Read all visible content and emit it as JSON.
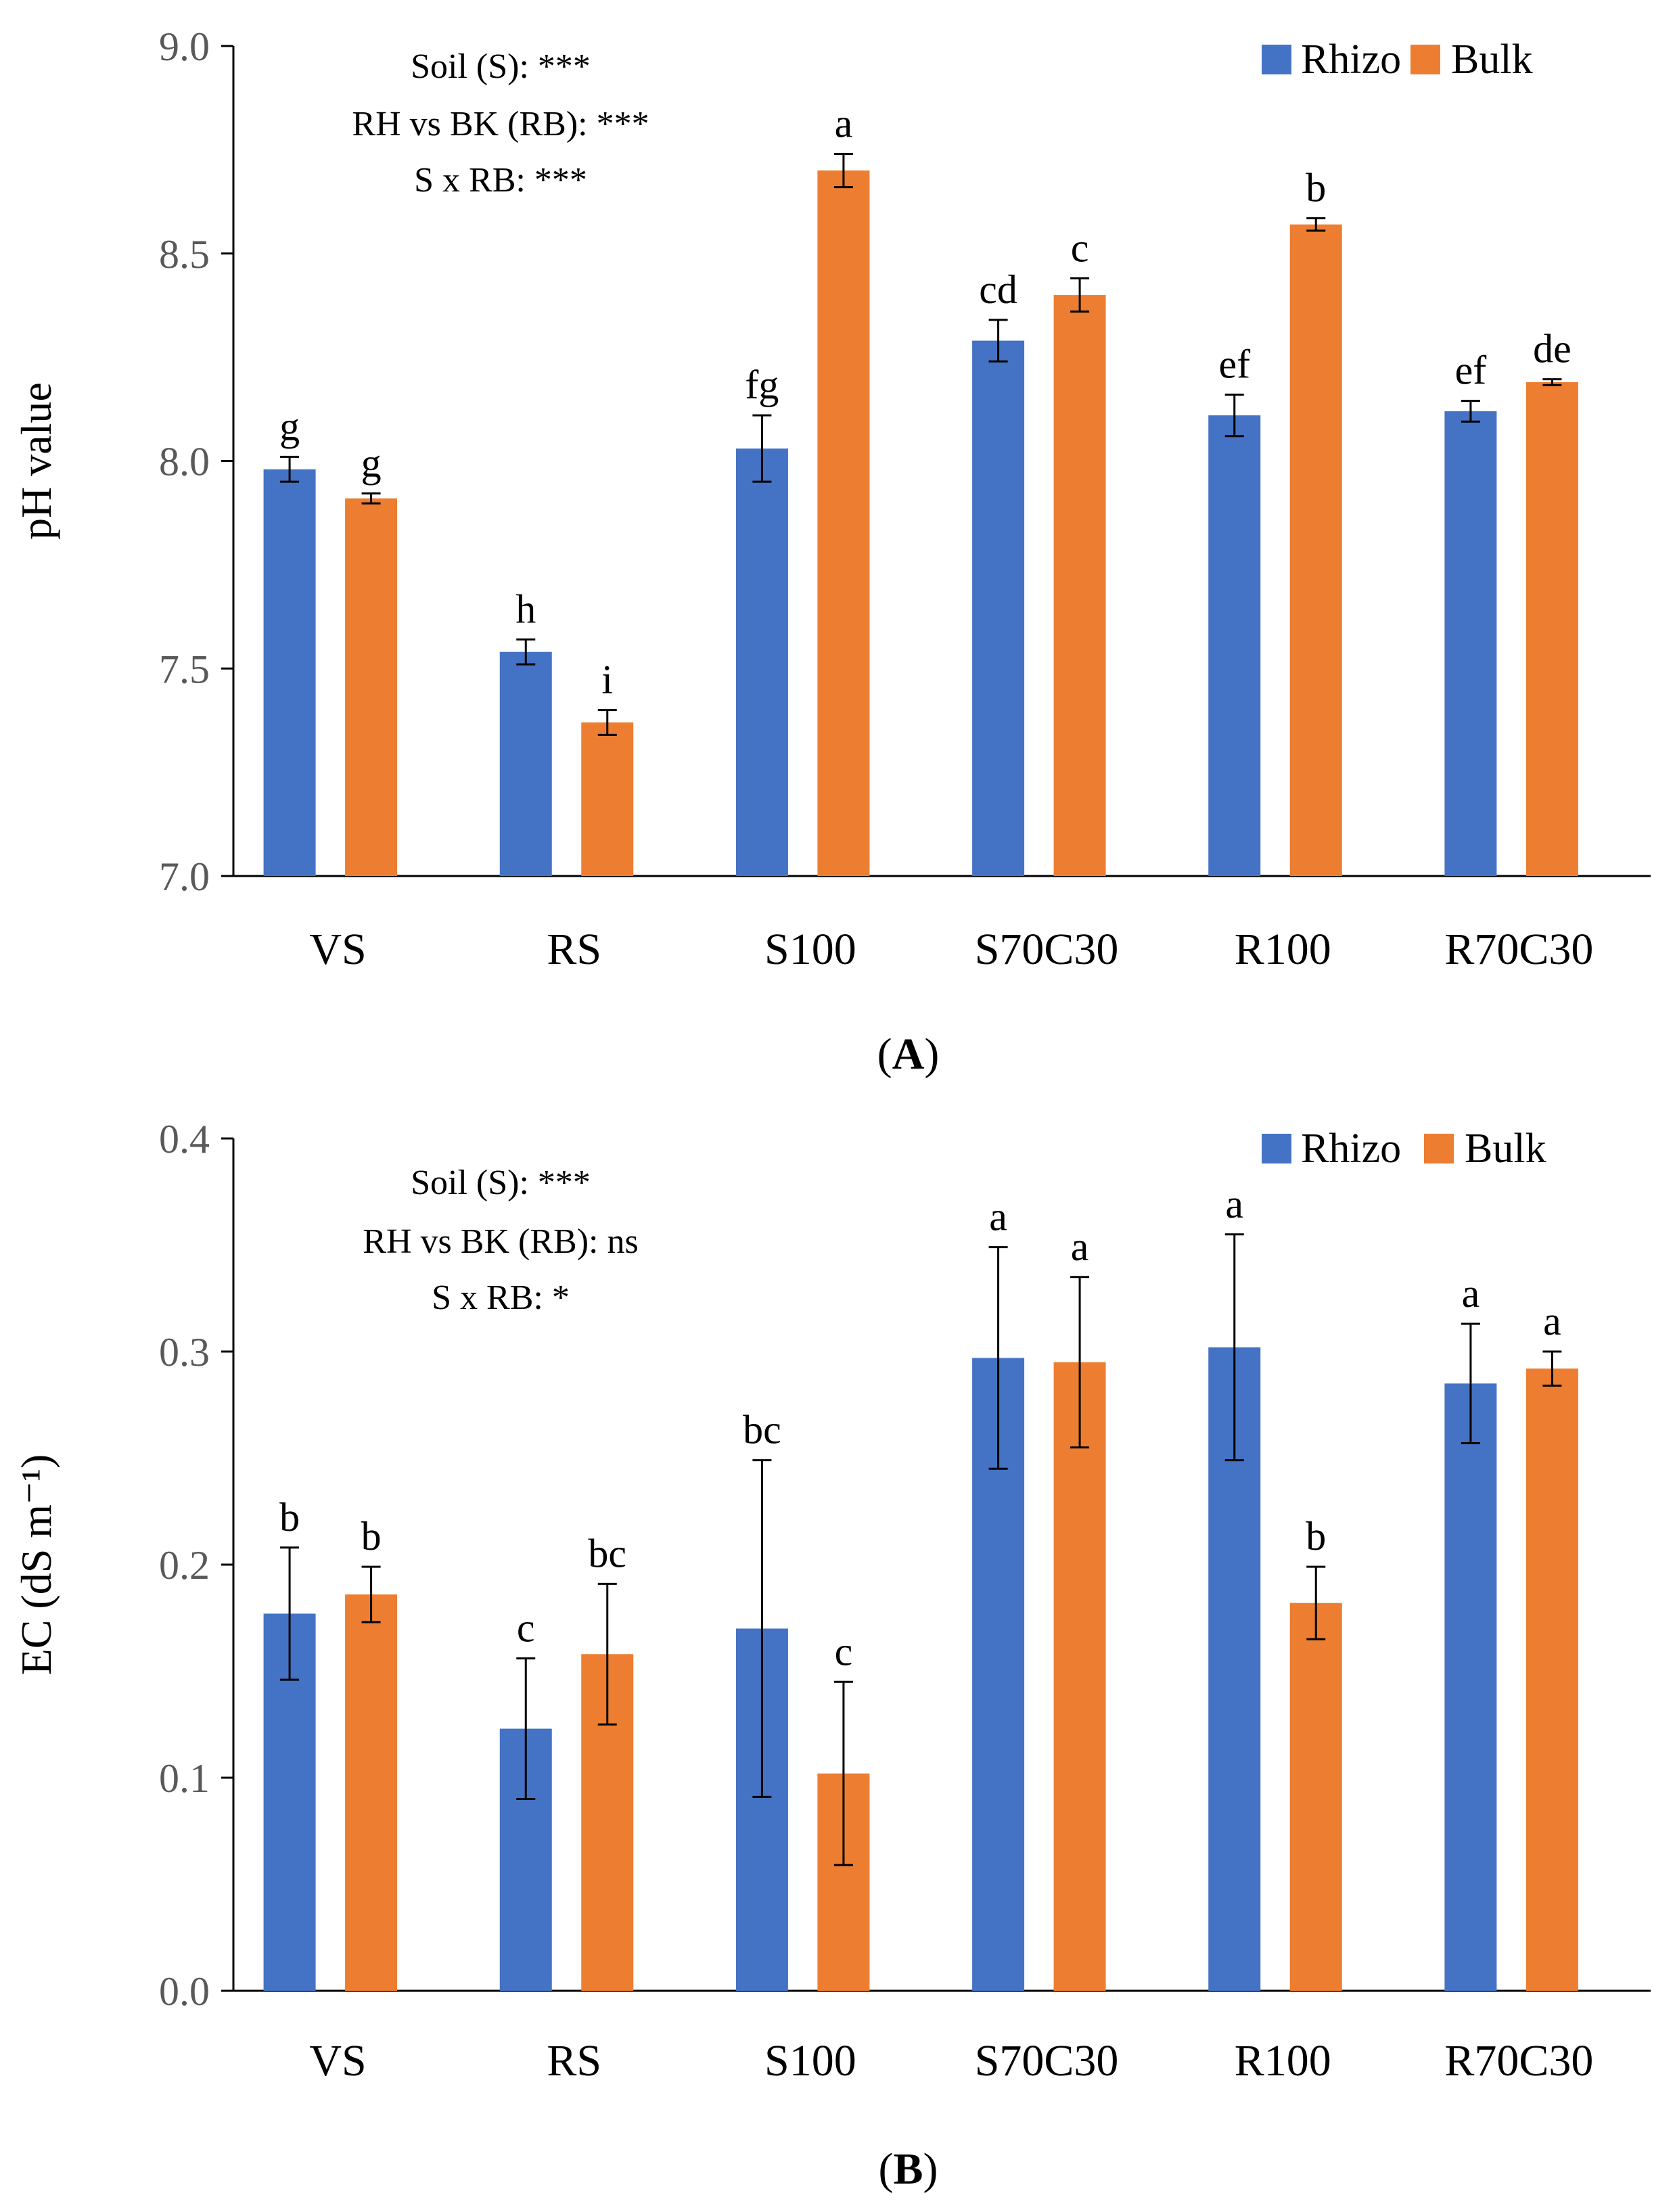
{
  "colors": {
    "rhizo": "#4472C4",
    "bulk": "#ED7D31",
    "axis": "#000000",
    "tick": "#595959"
  },
  "chart_data": [
    {
      "type": "bar",
      "panel_label": "A",
      "ylabel": "pH value",
      "ylim": [
        7.0,
        9.0
      ],
      "yticks": [
        "7.0",
        "7.5",
        "8.0",
        "8.5",
        "9.0"
      ],
      "ytick_values": [
        7.0,
        7.5,
        8.0,
        8.5,
        9.0
      ],
      "categories": [
        "VS",
        "RS",
        "S100",
        "S70C30",
        "R100",
        "R70C30"
      ],
      "series": [
        {
          "name": "Rhizo",
          "values": [
            7.98,
            7.54,
            8.03,
            8.29,
            8.11,
            8.12
          ],
          "errors": [
            0.03,
            0.03,
            0.08,
            0.05,
            0.05,
            0.025
          ],
          "letters": [
            "g",
            "h",
            "fg",
            "cd",
            "ef",
            "ef"
          ]
        },
        {
          "name": "Bulk",
          "values": [
            7.91,
            7.37,
            8.7,
            8.4,
            8.57,
            8.19
          ],
          "errors": [
            0.012,
            0.03,
            0.04,
            0.04,
            0.015,
            0.007
          ],
          "letters": [
            "g",
            "i",
            "a",
            "c",
            "b",
            "de"
          ]
        }
      ],
      "annotations": [
        "Soil (S): ***",
        "RH vs BK (RB): ***",
        "S x RB: ***"
      ],
      "legend": "top-right"
    },
    {
      "type": "bar",
      "panel_label": "B",
      "ylabel": "EC (dS m⁻¹)",
      "ylim": [
        0.0,
        0.4
      ],
      "yticks": [
        "0.0",
        "0.1",
        "0.2",
        "0.3",
        "0.4"
      ],
      "ytick_values": [
        0.0,
        0.1,
        0.2,
        0.3,
        0.4
      ],
      "categories": [
        "VS",
        "RS",
        "S100",
        "S70C30",
        "R100",
        "R70C30"
      ],
      "series": [
        {
          "name": "Rhizo",
          "values": [
            0.177,
            0.123,
            0.17,
            0.297,
            0.302,
            0.285
          ],
          "errors": [
            0.031,
            0.033,
            0.079,
            0.052,
            0.053,
            0.028
          ],
          "letters": [
            "b",
            "c",
            "bc",
            "a",
            "a",
            "a"
          ]
        },
        {
          "name": "Bulk",
          "values": [
            0.186,
            0.158,
            0.102,
            0.295,
            0.182,
            0.292
          ],
          "errors": [
            0.013,
            0.033,
            0.043,
            0.04,
            0.017,
            0.008
          ],
          "letters": [
            "b",
            "bc",
            "c",
            "a",
            "b",
            "a"
          ]
        }
      ],
      "annotations": [
        "Soil (S): ***",
        "RH vs BK (RB): ns",
        "S x RB: *"
      ],
      "legend": "top-right"
    }
  ]
}
